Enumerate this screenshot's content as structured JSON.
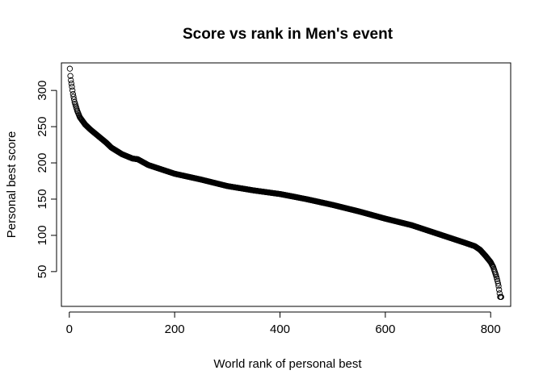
{
  "chart_data": {
    "type": "scatter",
    "title": "Score vs rank in Men's event",
    "xlabel": "World rank of personal best",
    "ylabel": "Personal best score",
    "xlim": [
      -15,
      838
    ],
    "ylim": [
      2,
      338
    ],
    "xticks": [
      0,
      200,
      400,
      600,
      800
    ],
    "yticks": [
      50,
      100,
      150,
      200,
      250,
      300
    ],
    "grid": false,
    "legend": "none",
    "n_points": 820,
    "curve_anchors": [
      [
        1,
        330
      ],
      [
        2,
        320
      ],
      [
        3,
        314
      ],
      [
        5,
        305
      ],
      [
        7,
        295
      ],
      [
        10,
        284
      ],
      [
        15,
        272
      ],
      [
        20,
        263
      ],
      [
        30,
        253
      ],
      [
        40,
        246
      ],
      [
        50,
        240
      ],
      [
        60,
        234
      ],
      [
        70,
        228
      ],
      [
        80,
        221
      ],
      [
        100,
        212
      ],
      [
        120,
        206
      ],
      [
        130,
        205
      ],
      [
        150,
        197
      ],
      [
        175,
        191
      ],
      [
        200,
        185
      ],
      [
        250,
        177
      ],
      [
        300,
        168
      ],
      [
        350,
        162
      ],
      [
        400,
        157
      ],
      [
        450,
        150
      ],
      [
        500,
        142
      ],
      [
        550,
        133
      ],
      [
        600,
        123
      ],
      [
        650,
        114
      ],
      [
        700,
        102
      ],
      [
        750,
        90
      ],
      [
        770,
        85
      ],
      [
        780,
        80
      ],
      [
        790,
        72
      ],
      [
        800,
        63
      ],
      [
        805,
        56
      ],
      [
        810,
        45
      ],
      [
        813,
        37
      ],
      [
        815,
        30
      ],
      [
        818,
        15
      ]
    ]
  }
}
